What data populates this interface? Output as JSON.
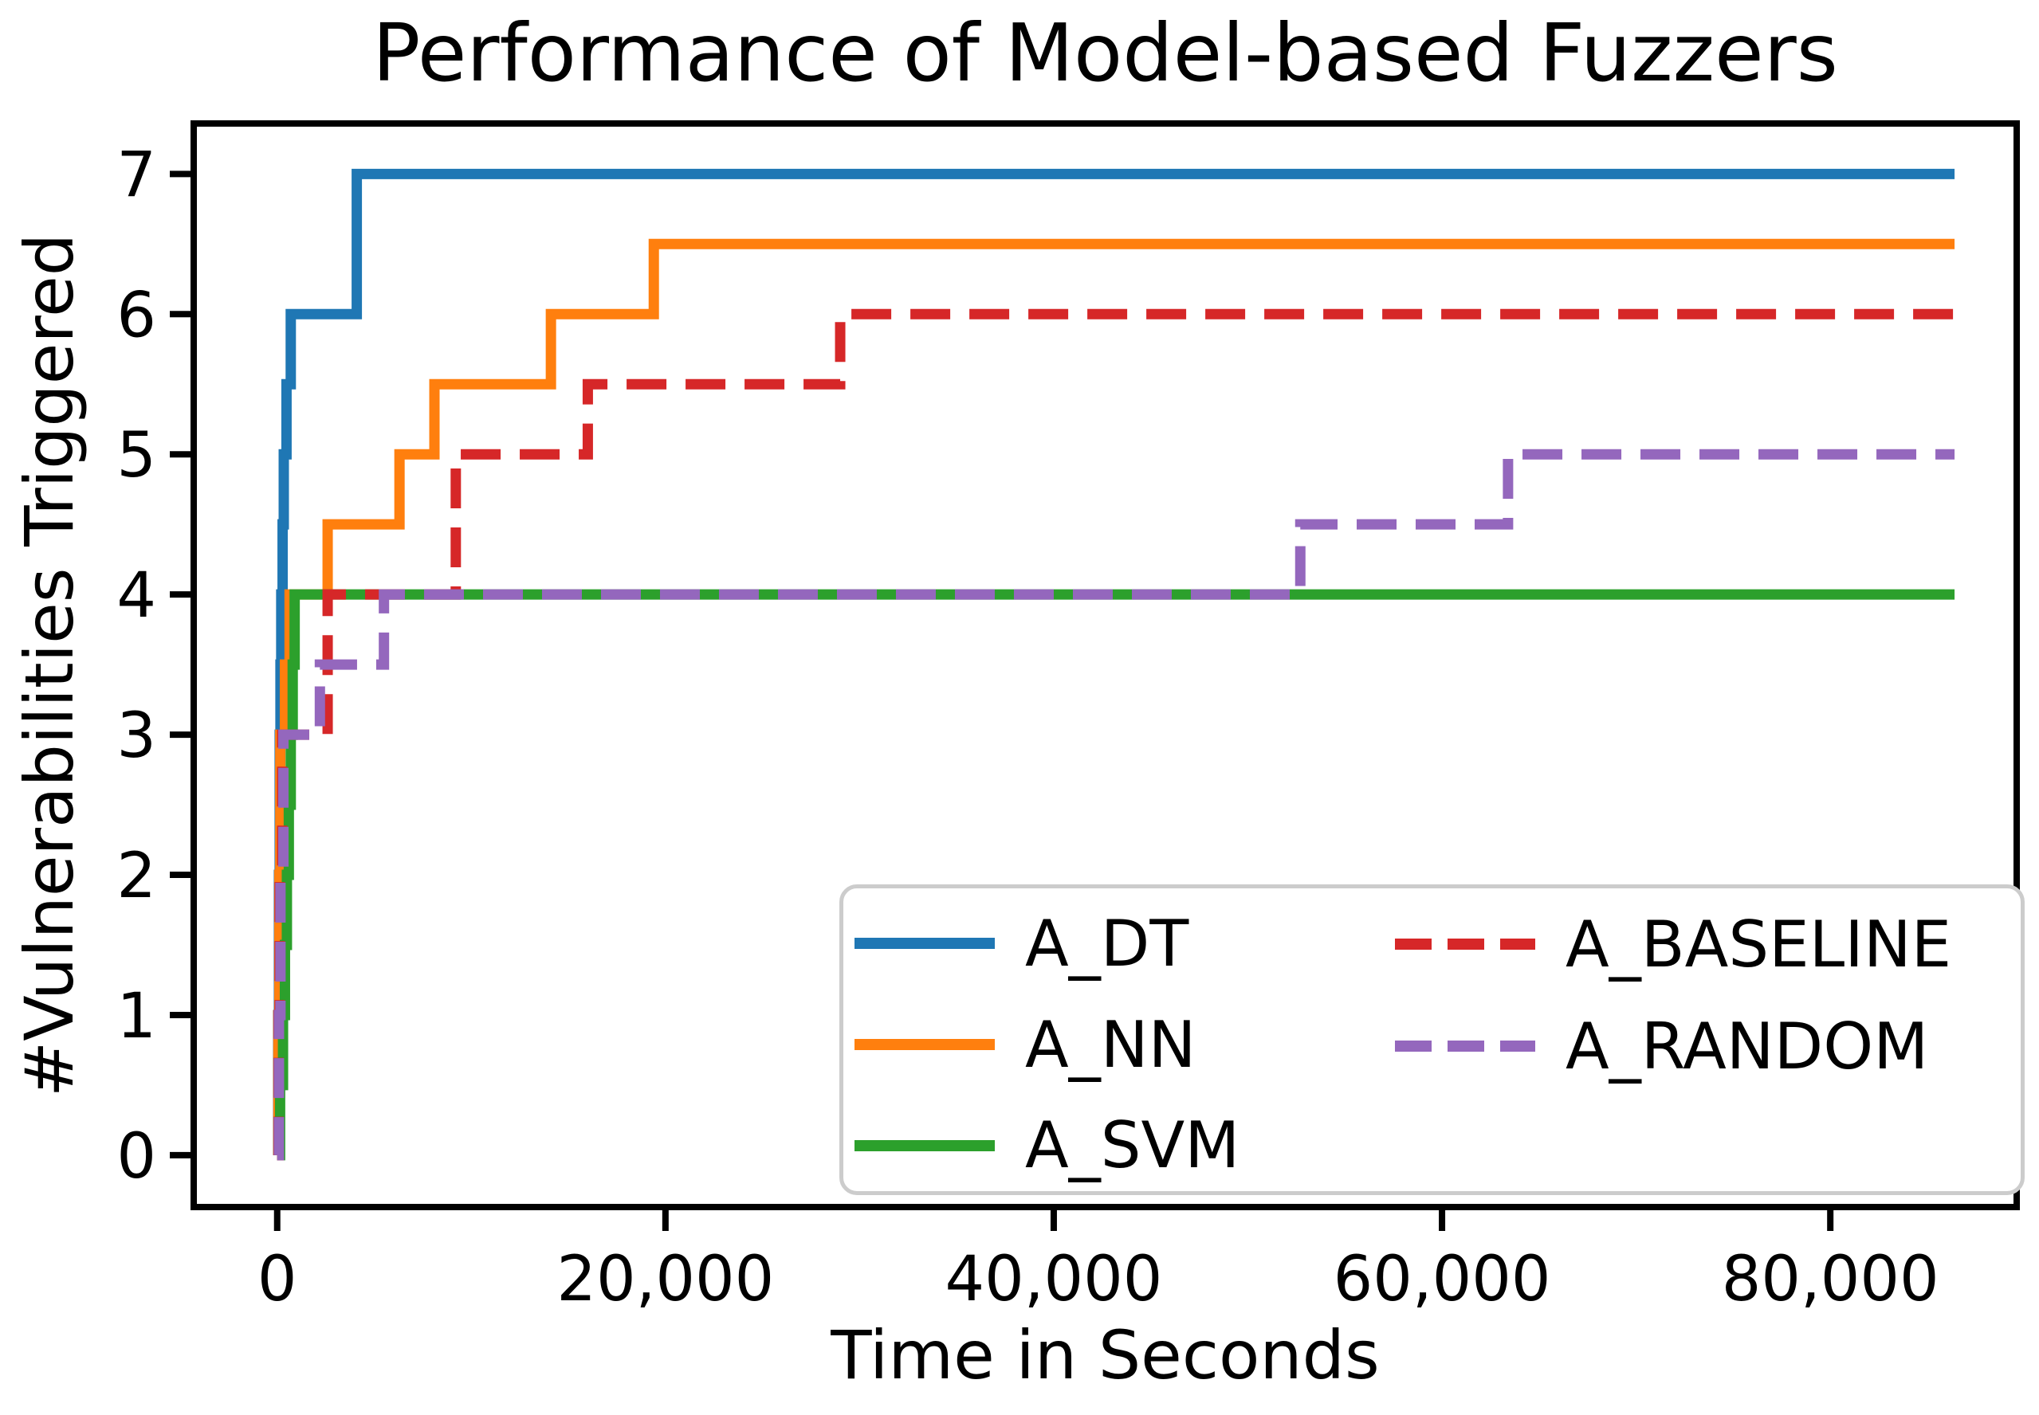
{
  "figure": {
    "title": "Performance of Model-based Fuzzers",
    "xlabel": "Time in Seconds",
    "ylabel": "#Vulnerabilities Triggered"
  },
  "colors": {
    "axis": "#000000",
    "background": "#ffffff",
    "legend_border": "#cccccc",
    "blue": "#1f77b4",
    "orange": "#ff7f0e",
    "green": "#2ca02c",
    "red": "#d62728",
    "purple": "#9467bd"
  },
  "chart_data": {
    "type": "line",
    "subtype": "step-post",
    "title": "Performance of Model-based Fuzzers",
    "xlabel": "Time in Seconds",
    "ylabel": "#Vulnerabilities Triggered",
    "xlim": [
      -4300,
      89600
    ],
    "ylim": [
      -0.37,
      7.36
    ],
    "grid": false,
    "x_ticks": [
      {
        "value": 0,
        "label": "0"
      },
      {
        "value": 20000,
        "label": "20,000"
      },
      {
        "value": 40000,
        "label": "40,000"
      },
      {
        "value": 60000,
        "label": "60,000"
      },
      {
        "value": 80000,
        "label": "80,000"
      }
    ],
    "y_ticks": [
      {
        "value": 0,
        "label": "0"
      },
      {
        "value": 1,
        "label": "1"
      },
      {
        "value": 2,
        "label": "2"
      },
      {
        "value": 3,
        "label": "3"
      },
      {
        "value": 4,
        "label": "4"
      },
      {
        "value": 5,
        "label": "5"
      },
      {
        "value": 6,
        "label": "6"
      },
      {
        "value": 7,
        "label": "7"
      }
    ],
    "series": [
      {
        "name": "A_DT",
        "color": "#1f77b4",
        "dash": "solid",
        "final_value": 7,
        "x": [
          0,
          50,
          90,
          130,
          170,
          210,
          280,
          340,
          480,
          700,
          4100,
          86400
        ],
        "y": [
          0,
          1,
          2,
          3,
          3.5,
          4,
          4.5,
          5,
          5.5,
          6,
          7,
          7
        ]
      },
      {
        "name": "A_NN",
        "color": "#ff7f0e",
        "dash": "solid",
        "final_value": 6.5,
        "x": [
          0,
          60,
          110,
          160,
          400,
          640,
          2600,
          6300,
          8100,
          14100,
          19400,
          86400
        ],
        "y": [
          0,
          1,
          2,
          3,
          3.5,
          4,
          4.5,
          5,
          5.5,
          6,
          6.5,
          6.5
        ]
      },
      {
        "name": "A_SVM",
        "color": "#2ca02c",
        "dash": "solid",
        "final_value": 4,
        "x": [
          0,
          150,
          300,
          400,
          500,
          600,
          700,
          800,
          900,
          86400
        ],
        "y": [
          0,
          0.5,
          1,
          1.5,
          2,
          2.5,
          3,
          3.5,
          4,
          4
        ]
      },
      {
        "name": "A_BASELINE",
        "color": "#d62728",
        "dash": "dashed",
        "final_value": 6,
        "x": [
          0,
          70,
          130,
          260,
          2600,
          9200,
          16000,
          29000,
          86400
        ],
        "y": [
          0,
          1,
          2,
          3,
          4,
          5,
          5.5,
          6,
          6
        ]
      },
      {
        "name": "A_RANDOM",
        "color": "#9467bd",
        "dash": "dashed",
        "final_value": 5,
        "x": [
          0,
          90,
          170,
          320,
          2200,
          5500,
          52700,
          63400,
          86400
        ],
        "y": [
          0,
          1,
          2,
          3,
          3.5,
          4,
          4.5,
          5,
          5
        ]
      }
    ],
    "legend_position": "lower right",
    "legend_columns": [
      [
        "A_DT",
        "A_NN",
        "A_SVM"
      ],
      [
        "A_BASELINE",
        "A_RANDOM"
      ]
    ]
  }
}
